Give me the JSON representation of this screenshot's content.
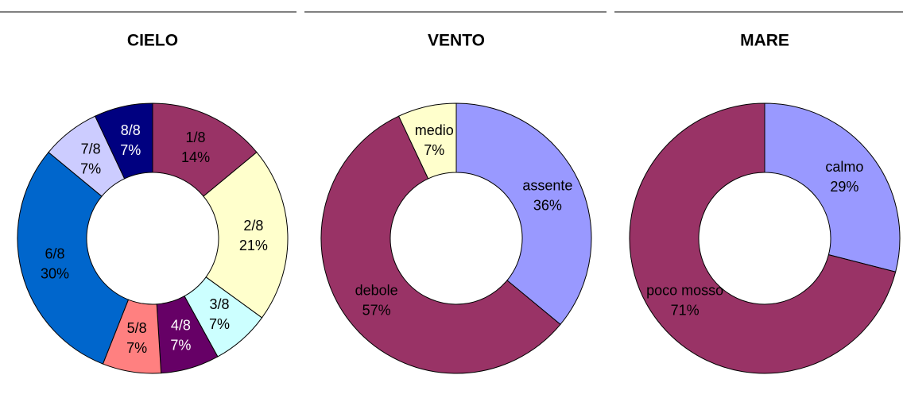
{
  "chart_data": [
    {
      "type": "pie",
      "title": "CIELO",
      "categories": [
        "1/8",
        "2/8",
        "3/8",
        "4/8",
        "5/8",
        "6/8",
        "7/8",
        "8/8"
      ],
      "values": [
        14,
        21,
        7,
        7,
        7,
        30,
        7,
        7
      ],
      "value_labels": [
        "14%",
        "21%",
        "7%",
        "7%",
        "7%",
        "30%",
        "7%",
        "7%"
      ],
      "colors": [
        "#993366",
        "#ffffcc",
        "#ccffff",
        "#660066",
        "#ff8080",
        "#0066cc",
        "#ccccff",
        "#000080"
      ]
    },
    {
      "type": "pie",
      "title": "VENTO",
      "categories": [
        "assente",
        "debole",
        "medio"
      ],
      "values": [
        36,
        57,
        7
      ],
      "value_labels": [
        "36%",
        "57%",
        "7%"
      ],
      "colors": [
        "#9999ff",
        "#993366",
        "#ffffcc"
      ]
    },
    {
      "type": "pie",
      "title": "MARE",
      "categories": [
        "calmo",
        "poco mosso"
      ],
      "values": [
        29,
        71
      ],
      "value_labels": [
        "29%",
        "71%"
      ],
      "colors": [
        "#9999ff",
        "#993366"
      ]
    }
  ]
}
